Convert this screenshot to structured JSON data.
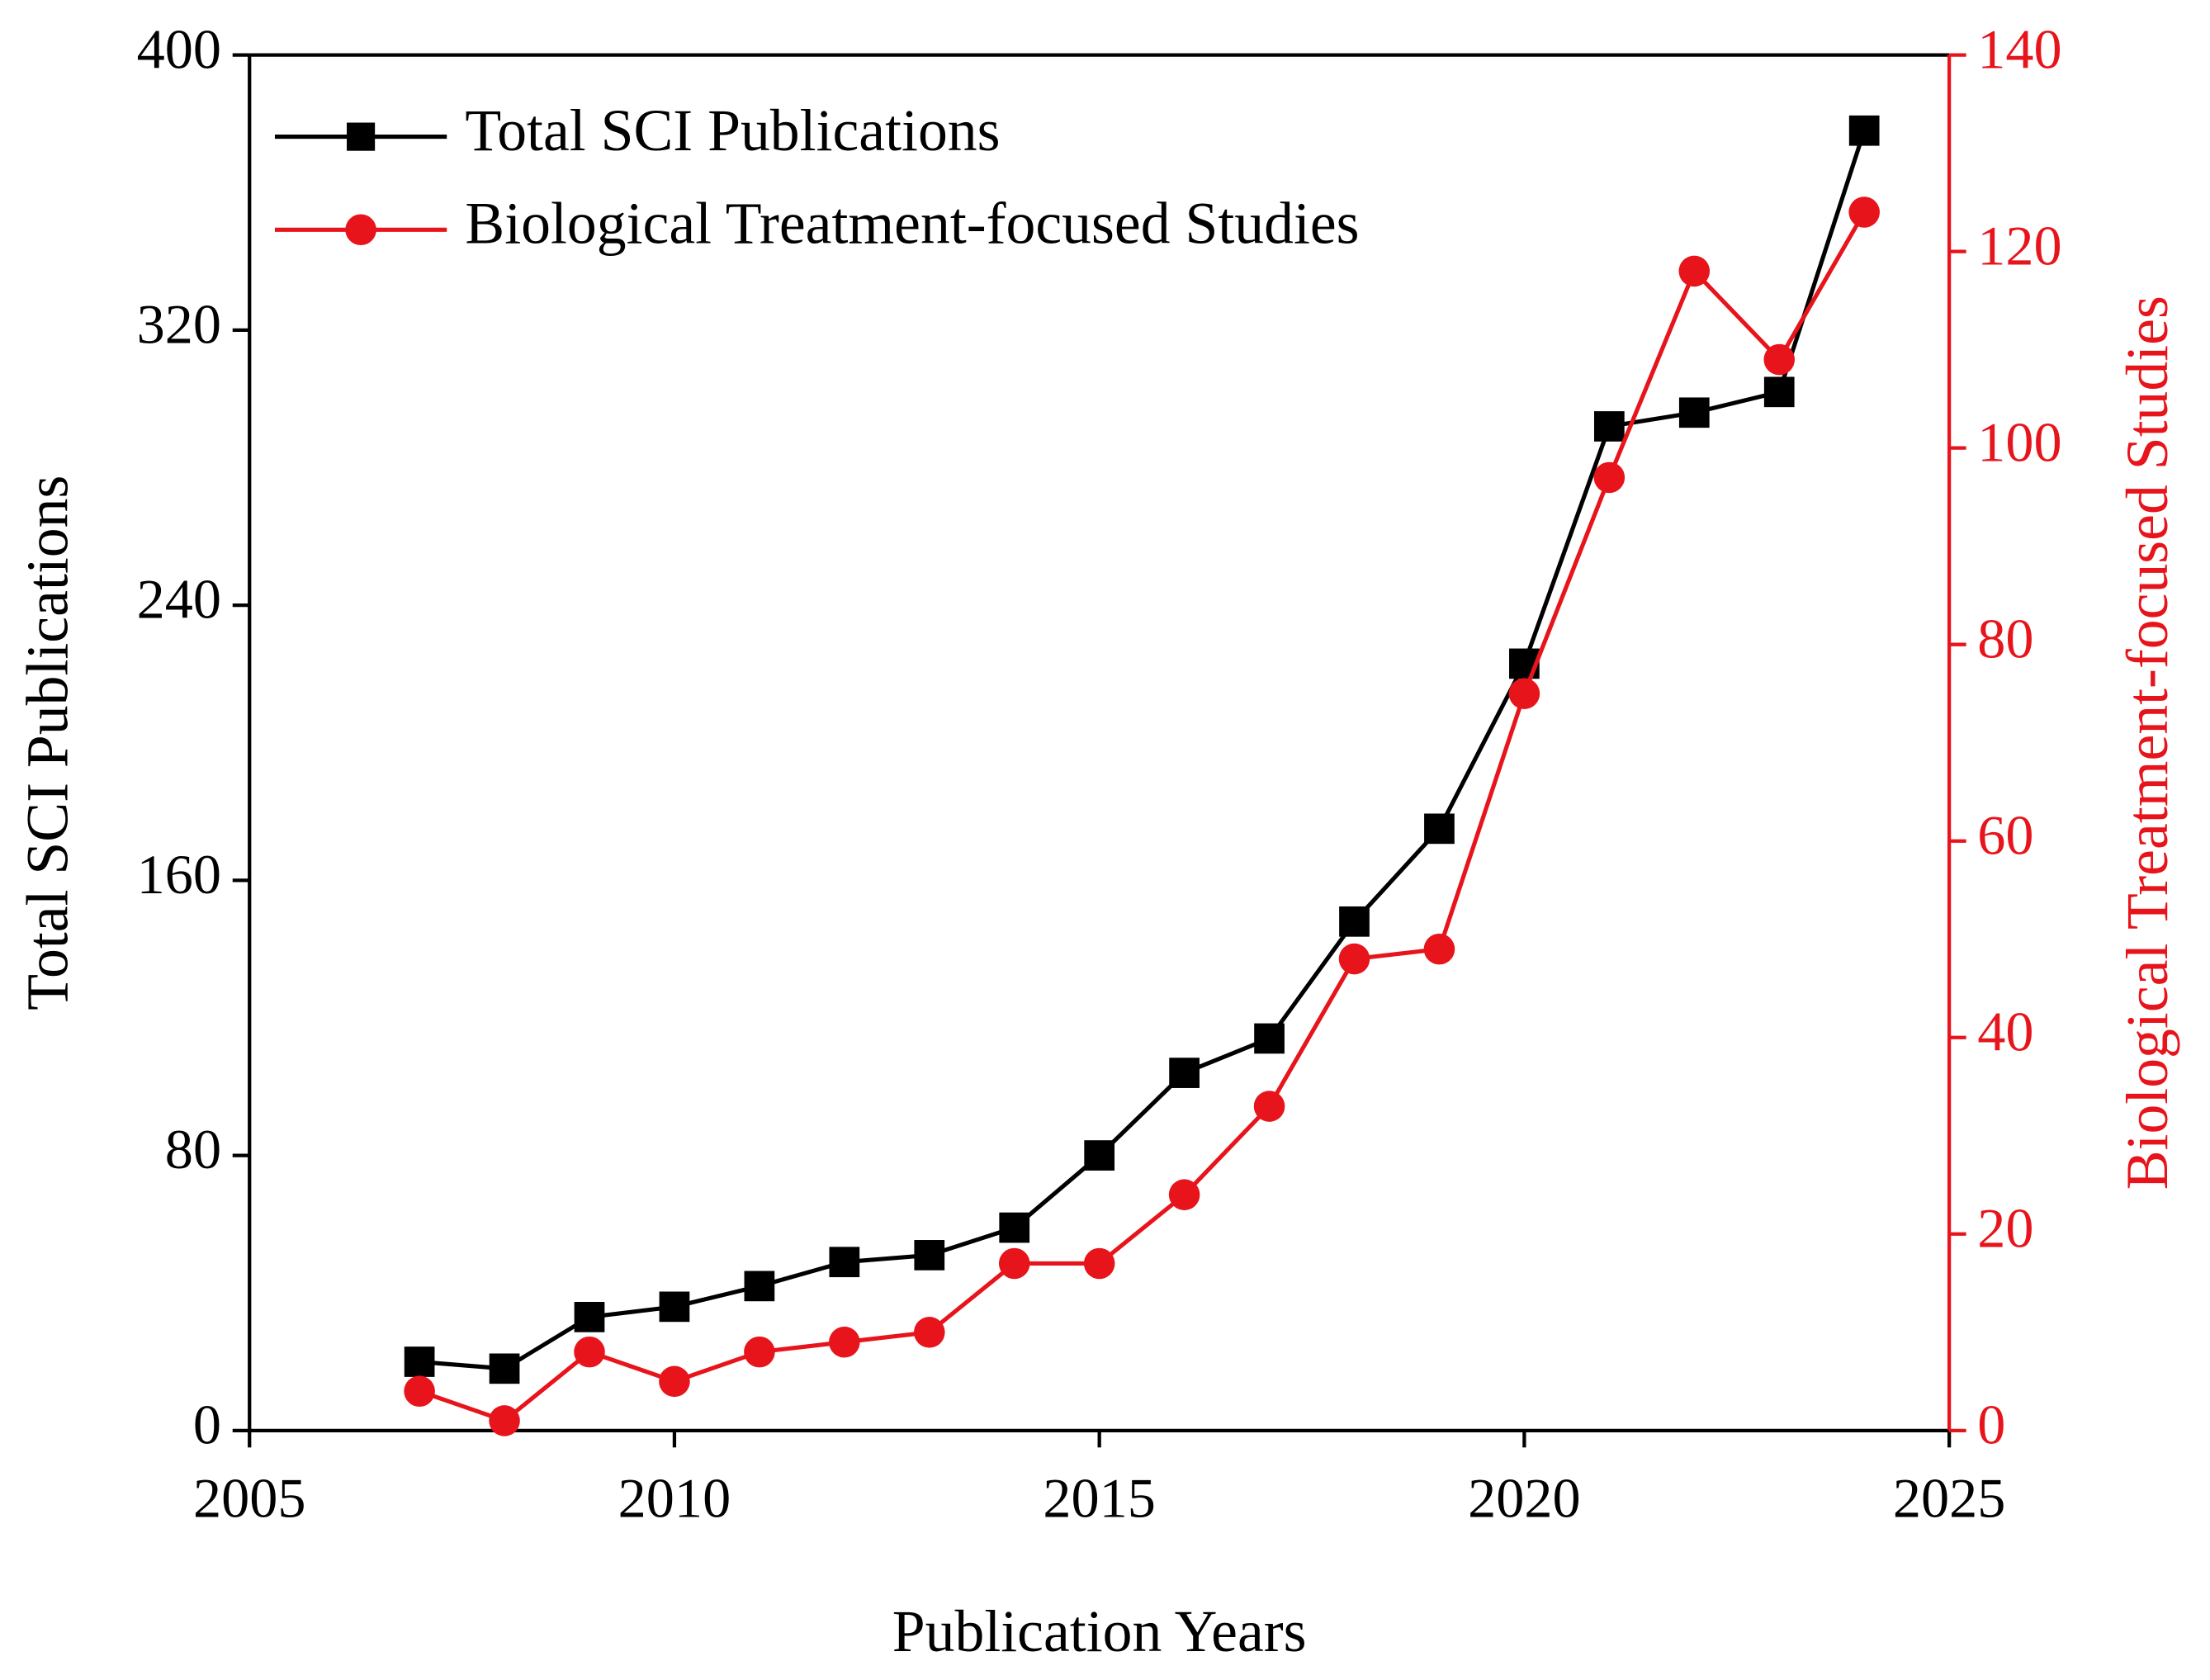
{
  "chart_data": {
    "type": "line",
    "xlabel": "Publication Years",
    "ylabel": "Total SCI Publications",
    "y2label": "Biological Treatment-focused Studies",
    "x": [
      2007,
      2008,
      2009,
      2010,
      2011,
      2012,
      2013,
      2014,
      2015,
      2016,
      2017,
      2018,
      2019,
      2020,
      2021,
      2022,
      2023,
      2024
    ],
    "series": [
      {
        "name": "Total SCI Publications",
        "color": "#000000",
        "marker": "square",
        "values": [
          20,
          18,
          33,
          36,
          42,
          49,
          51,
          59,
          80,
          104,
          114,
          148,
          175,
          223,
          292,
          296,
          302,
          378
        ]
      },
      {
        "name": "Biological Treatment-focused Studies",
        "color": "#e8141b",
        "marker": "circle",
        "axis": "y2",
        "values": [
          4,
          1,
          8,
          5,
          8,
          9,
          10,
          17,
          17,
          24,
          33,
          48,
          49,
          75,
          97,
          118,
          109,
          124
        ]
      }
    ],
    "xlim": [
      2005,
      2025
    ],
    "xticks": [
      2005,
      2010,
      2015,
      2020,
      2025
    ],
    "ylim": [
      0,
      400
    ],
    "yticks": [
      0,
      80,
      160,
      240,
      320,
      400
    ],
    "y2lim": [
      0,
      140
    ],
    "y2ticks": [
      0,
      20,
      40,
      60,
      80,
      100,
      120,
      140
    ],
    "y2color": "#e8141b",
    "legend": "upper left"
  }
}
